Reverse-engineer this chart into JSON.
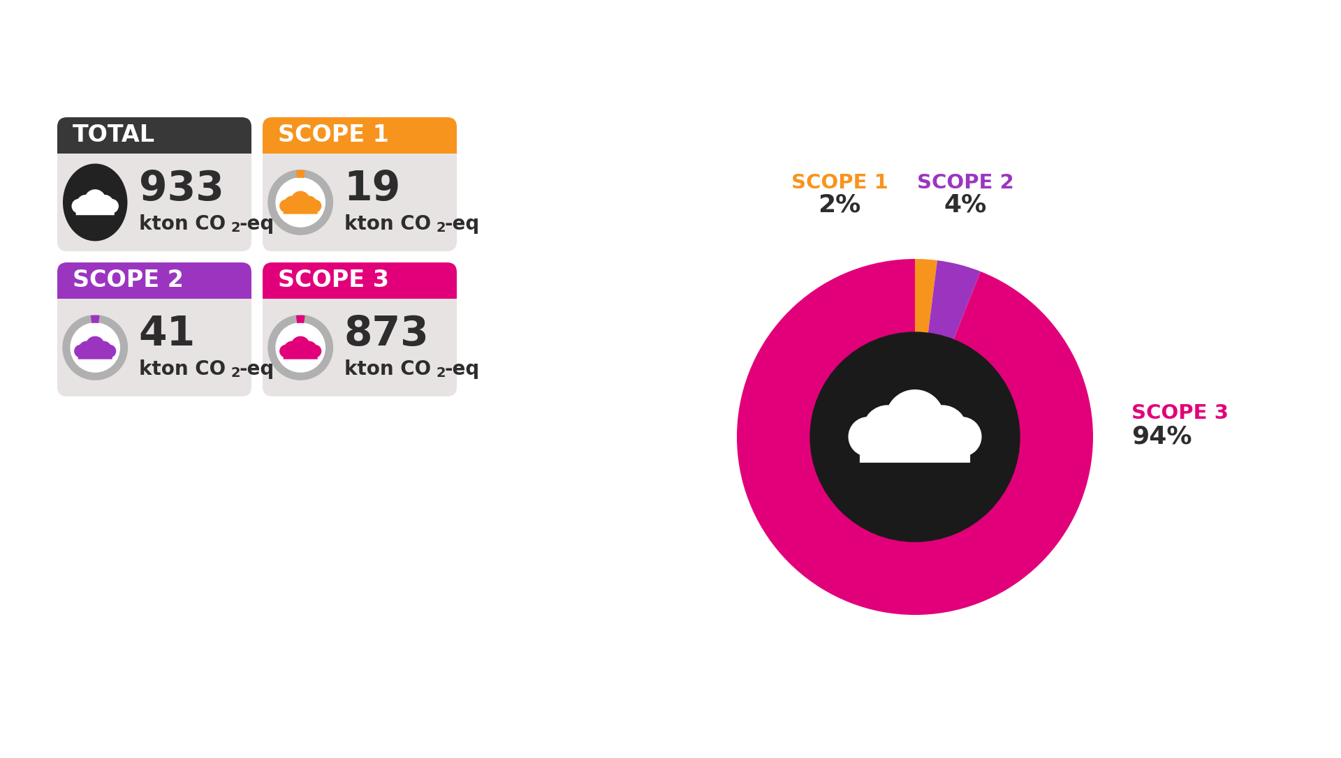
{
  "background_color": "#ffffff",
  "cards": [
    {
      "title": "TOTAL",
      "header_color": "#383838",
      "header_text_color": "#ffffff",
      "body_color": "#e8e3e3",
      "value": "933",
      "icon_bg": "#222222",
      "icon_color": "#ffffff",
      "icon_ring": null,
      "icon_ring_color": null,
      "icon_ring_accent": null
    },
    {
      "title": "SCOPE 1",
      "header_color": "#f7941d",
      "header_text_color": "#ffffff",
      "body_color": "#e8e3e3",
      "value": "19",
      "icon_bg": "#ffffff",
      "icon_color": "#f7941d",
      "icon_ring": "#b0b0b0",
      "icon_ring_accent": "#f7941d"
    },
    {
      "title": "SCOPE 2",
      "header_color": "#9b35c0",
      "header_text_color": "#ffffff",
      "body_color": "#e8e3e3",
      "value": "41",
      "icon_bg": "#ffffff",
      "icon_color": "#9b35c0",
      "icon_ring": "#b0b0b0",
      "icon_ring_accent": "#9b35c0"
    },
    {
      "title": "SCOPE 3",
      "header_color": "#e2007a",
      "header_text_color": "#ffffff",
      "body_color": "#e8e3e3",
      "value": "873",
      "icon_bg": "#ffffff",
      "icon_color": "#e2007a",
      "icon_ring": "#b0b0b0",
      "icon_ring_accent": "#e2007a"
    }
  ],
  "pie_values": [
    2,
    4,
    94
  ],
  "pie_colors": [
    "#f7941d",
    "#9b35c0",
    "#e2007a"
  ],
  "pie_label_colors": [
    "#f7941d",
    "#9b35c0",
    "#e2007a"
  ],
  "pie_center_color": "#1a1a1a",
  "scope3_label_color": "#e2007a",
  "dark_text": "#2d2d2d",
  "unit_text": "kton CO",
  "unit_sub": "2",
  "unit_end": "-eq"
}
